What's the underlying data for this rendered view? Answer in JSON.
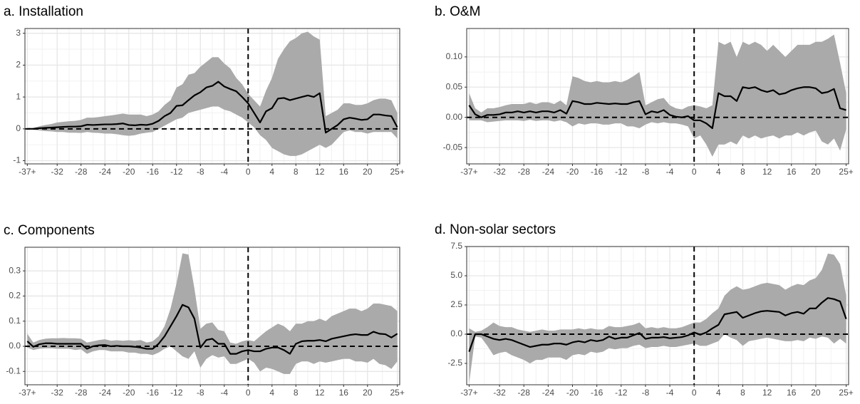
{
  "chart_data": [
    {
      "type": "line",
      "title": "a. Installation",
      "x": [
        -37,
        -36,
        -35,
        -34,
        -33,
        -32,
        -31,
        -30,
        -29,
        -28,
        -27,
        -26,
        -25,
        -24,
        -23,
        -22,
        -21,
        -20,
        -19,
        -18,
        -17,
        -16,
        -15,
        -14,
        -13,
        -12,
        -11,
        -10,
        -9,
        -8,
        -7,
        -6,
        -5,
        -4,
        -3,
        -2,
        -1,
        0,
        1,
        2,
        3,
        4,
        5,
        6,
        7,
        8,
        9,
        10,
        11,
        12,
        13,
        14,
        15,
        16,
        17,
        18,
        19,
        20,
        21,
        22,
        23,
        24,
        25
      ],
      "values": [
        0,
        0,
        0.02,
        0.03,
        0.04,
        0.05,
        0.06,
        0.07,
        0.07,
        0.08,
        0.13,
        0.12,
        0.13,
        0.14,
        0.14,
        0.15,
        0.17,
        0.12,
        0.11,
        0.13,
        0.12,
        0.16,
        0.25,
        0.4,
        0.5,
        0.72,
        0.74,
        0.9,
        1.05,
        1.15,
        1.3,
        1.35,
        1.48,
        1.33,
        1.25,
        1.18,
        1.0,
        0.8,
        0.5,
        0.2,
        0.55,
        0.65,
        0.95,
        0.97,
        0.9,
        0.95,
        1.0,
        1.05,
        1.0,
        1.12,
        -0.12,
        0,
        0.12,
        0.3,
        0.35,
        0.32,
        0.28,
        0.3,
        0.45,
        0.45,
        0.42,
        0.4,
        0.05
      ],
      "lower": [
        0,
        -0.03,
        -0.05,
        -0.07,
        -0.08,
        -0.1,
        -0.1,
        -0.12,
        -0.12,
        -0.13,
        -0.1,
        -0.12,
        -0.13,
        -0.15,
        -0.15,
        -0.17,
        -0.2,
        -0.22,
        -0.2,
        -0.15,
        -0.12,
        -0.1,
        0,
        0.1,
        0.2,
        0.3,
        0.35,
        0.5,
        0.55,
        0.6,
        0.65,
        0.7,
        0.7,
        0.6,
        0.55,
        0.45,
        0.35,
        0.2,
        0.05,
        -0.2,
        -0.35,
        -0.6,
        -0.7,
        -0.8,
        -0.85,
        -0.85,
        -0.8,
        -0.7,
        -0.6,
        -0.5,
        -0.6,
        -0.5,
        -0.3,
        -0.1,
        -0.05,
        -0.1,
        -0.1,
        -0.15,
        -0.1,
        -0.1,
        -0.1,
        -0.1,
        -0.3
      ],
      "upper": [
        0,
        0.03,
        0.08,
        0.12,
        0.15,
        0.2,
        0.22,
        0.24,
        0.25,
        0.28,
        0.35,
        0.35,
        0.37,
        0.4,
        0.42,
        0.45,
        0.48,
        0.45,
        0.45,
        0.45,
        0.4,
        0.45,
        0.55,
        0.75,
        0.9,
        1.3,
        1.4,
        1.7,
        1.75,
        1.95,
        2.1,
        2.25,
        2.25,
        2.05,
        1.9,
        1.6,
        1.4,
        1.1,
        0.9,
        0.7,
        1.2,
        1.6,
        2.2,
        2.5,
        2.75,
        2.85,
        3.0,
        3.05,
        2.9,
        2.8,
        0.4,
        0.5,
        0.6,
        0.8,
        0.8,
        0.75,
        0.75,
        0.8,
        0.9,
        0.95,
        0.95,
        0.9,
        0.5
      ],
      "color": "#000000",
      "band_color": "#aaaaaa",
      "hline": 0,
      "vline": 0,
      "grid": true,
      "xlim": [
        -37.4,
        25.4
      ],
      "ylim": [
        -1.1,
        3.15
      ],
      "xticks": [
        {
          "value": -37,
          "label": "-37+"
        },
        -32,
        -28,
        -24,
        -20,
        -16,
        -12,
        -8,
        -4,
        0,
        4,
        8,
        12,
        16,
        20,
        {
          "value": 25,
          "label": "25+"
        }
      ],
      "yticks": [
        -1,
        0,
        1,
        2,
        3
      ]
    },
    {
      "type": "line",
      "title": "b. O&M",
      "x": [
        -37,
        -36,
        -35,
        -34,
        -33,
        -32,
        -31,
        -30,
        -29,
        -28,
        -27,
        -26,
        -25,
        -24,
        -23,
        -22,
        -21,
        -20,
        -19,
        -18,
        -17,
        -16,
        -15,
        -14,
        -13,
        -12,
        -11,
        -10,
        -9,
        -8,
        -7,
        -6,
        -5,
        -4,
        -3,
        -2,
        -1,
        0,
        1,
        2,
        3,
        4,
        5,
        6,
        7,
        8,
        9,
        10,
        11,
        12,
        13,
        14,
        15,
        16,
        17,
        18,
        19,
        20,
        21,
        22,
        23,
        24,
        25
      ],
      "values": [
        0.02,
        0.005,
        0,
        0.004,
        0.004,
        0.005,
        0.008,
        0.008,
        0.01,
        0.008,
        0.01,
        0.008,
        0.01,
        0.01,
        0.008,
        0.012,
        0.006,
        0.027,
        0.025,
        0.022,
        0.022,
        0.024,
        0.023,
        0.022,
        0.023,
        0.022,
        0.022,
        0.025,
        0.027,
        0.005,
        0.01,
        0.008,
        0.012,
        0.004,
        0.001,
        0,
        0.002,
        -0.005,
        -0.005,
        -0.01,
        -0.018,
        0.04,
        0.035,
        0.035,
        0.027,
        0.05,
        0.048,
        0.05,
        0.045,
        0.042,
        0.045,
        0.038,
        0.04,
        0.045,
        0.048,
        0.05,
        0.05,
        0.048,
        0.04,
        0.042,
        0.047,
        0.015,
        0.012
      ],
      "lower": [
        -0.005,
        -0.005,
        -0.005,
        -0.008,
        -0.007,
        -0.006,
        -0.005,
        -0.005,
        -0.005,
        -0.006,
        -0.004,
        -0.006,
        -0.005,
        -0.005,
        -0.007,
        -0.005,
        -0.008,
        -0.015,
        -0.01,
        -0.012,
        -0.01,
        -0.01,
        -0.012,
        -0.012,
        -0.01,
        -0.01,
        -0.015,
        -0.015,
        -0.018,
        -0.012,
        -0.008,
        -0.01,
        -0.008,
        -0.01,
        -0.01,
        -0.012,
        -0.015,
        -0.035,
        -0.03,
        -0.045,
        -0.065,
        -0.045,
        -0.045,
        -0.04,
        -0.045,
        -0.03,
        -0.035,
        -0.03,
        -0.035,
        -0.032,
        -0.03,
        -0.035,
        -0.03,
        -0.03,
        -0.025,
        -0.03,
        -0.025,
        -0.022,
        -0.04,
        -0.045,
        -0.035,
        -0.055,
        -0.02
      ],
      "upper": [
        0.04,
        0.015,
        0.008,
        0.015,
        0.015,
        0.017,
        0.02,
        0.022,
        0.022,
        0.022,
        0.025,
        0.022,
        0.025,
        0.025,
        0.022,
        0.028,
        0.02,
        0.068,
        0.065,
        0.06,
        0.058,
        0.06,
        0.058,
        0.058,
        0.06,
        0.058,
        0.062,
        0.068,
        0.075,
        0.02,
        0.025,
        0.03,
        0.032,
        0.02,
        0.015,
        0.013,
        0.018,
        0.02,
        0.018,
        0.015,
        0.02,
        0.125,
        0.12,
        0.125,
        0.1,
        0.125,
        0.12,
        0.125,
        0.12,
        0.11,
        0.12,
        0.11,
        0.1,
        0.11,
        0.12,
        0.12,
        0.12,
        0.125,
        0.125,
        0.13,
        0.137,
        0.09,
        0.04
      ],
      "color": "#000000",
      "band_color": "#aaaaaa",
      "hline": 0,
      "vline": 0,
      "grid": true,
      "xlim": [
        -37.4,
        25.4
      ],
      "ylim": [
        -0.077,
        0.147
      ],
      "xticks": [
        {
          "value": -37,
          "label": "-37+"
        },
        -32,
        -28,
        -24,
        -20,
        -16,
        -12,
        -8,
        -4,
        0,
        4,
        8,
        12,
        16,
        20,
        {
          "value": 25,
          "label": "25+"
        }
      ],
      "yticks": [
        -0.05,
        {
          "value": 0,
          "label": "0.00"
        },
        0.05,
        {
          "value": 0.1,
          "label": "0.10"
        }
      ]
    },
    {
      "type": "line",
      "title": "c. Components",
      "x": [
        -37,
        -36,
        -35,
        -34,
        -33,
        -32,
        -31,
        -30,
        -29,
        -28,
        -27,
        -26,
        -25,
        -24,
        -23,
        -22,
        -21,
        -20,
        -19,
        -18,
        -17,
        -16,
        -15,
        -14,
        -13,
        -12,
        -11,
        -10,
        -9,
        -8,
        -7,
        -6,
        -5,
        -4,
        -3,
        -2,
        -1,
        0,
        1,
        2,
        3,
        4,
        5,
        6,
        7,
        8,
        9,
        10,
        11,
        12,
        13,
        14,
        15,
        16,
        17,
        18,
        19,
        20,
        21,
        22,
        23,
        24,
        25
      ],
      "values": [
        0.02,
        -0.002,
        0.008,
        0.012,
        0.012,
        0.01,
        0.01,
        0.01,
        0.01,
        0.01,
        -0.01,
        0,
        0.004,
        0.005,
        0,
        0.002,
        0,
        0,
        -0.002,
        -0.005,
        -0.01,
        -0.01,
        0.01,
        0.04,
        0.08,
        0.12,
        0.165,
        0.155,
        0.11,
        -0.005,
        0.025,
        0.03,
        0.01,
        0.01,
        -0.03,
        -0.03,
        -0.02,
        -0.015,
        -0.02,
        -0.02,
        -0.01,
        -0.005,
        -0.005,
        -0.015,
        -0.03,
        0.01,
        0.02,
        0.022,
        0.022,
        0.025,
        0.02,
        0.03,
        0.035,
        0.04,
        0.045,
        0.048,
        0.045,
        0.045,
        0.058,
        0.05,
        0.048,
        0.035,
        0.05
      ],
      "lower": [
        -0.005,
        -0.015,
        -0.01,
        -0.008,
        -0.008,
        -0.01,
        -0.01,
        -0.01,
        -0.015,
        -0.012,
        -0.03,
        -0.02,
        -0.015,
        -0.015,
        -0.02,
        -0.02,
        -0.02,
        -0.025,
        -0.025,
        -0.03,
        -0.03,
        -0.035,
        -0.025,
        -0.01,
        0,
        -0.02,
        -0.04,
        -0.05,
        -0.02,
        -0.085,
        -0.05,
        -0.035,
        -0.045,
        -0.04,
        -0.07,
        -0.07,
        -0.06,
        -0.05,
        -0.065,
        -0.1,
        -0.085,
        -0.09,
        -0.1,
        -0.11,
        -0.11,
        -0.07,
        -0.06,
        -0.06,
        -0.07,
        -0.06,
        -0.065,
        -0.06,
        -0.055,
        -0.05,
        -0.05,
        -0.06,
        -0.06,
        -0.065,
        -0.05,
        -0.07,
        -0.075,
        -0.09,
        -0.06
      ],
      "upper": [
        0.05,
        0.015,
        0.025,
        0.03,
        0.032,
        0.032,
        0.033,
        0.032,
        0.032,
        0.03,
        0.015,
        0.02,
        0.025,
        0.028,
        0.022,
        0.024,
        0.022,
        0.024,
        0.022,
        0.025,
        0.015,
        0.02,
        0.04,
        0.08,
        0.15,
        0.25,
        0.37,
        0.365,
        0.23,
        0.07,
        0.09,
        0.095,
        0.065,
        0.06,
        0.015,
        0.01,
        0.02,
        0.025,
        0.02,
        0.04,
        0.06,
        0.075,
        0.09,
        0.08,
        0.06,
        0.09,
        0.09,
        0.1,
        0.1,
        0.11,
        0.1,
        0.12,
        0.13,
        0.14,
        0.15,
        0.15,
        0.14,
        0.15,
        0.17,
        0.17,
        0.165,
        0.16,
        0.14
      ],
      "color": "#000000",
      "band_color": "#aaaaaa",
      "hline": 0,
      "vline": 0,
      "grid": true,
      "xlim": [
        -37.4,
        25.4
      ],
      "ylim": [
        -0.153,
        0.394
      ],
      "xticks": [
        {
          "value": -37,
          "label": "-37+"
        },
        -32,
        -28,
        -24,
        -20,
        -16,
        -12,
        -8,
        -4,
        0,
        4,
        8,
        12,
        16,
        20,
        {
          "value": 25,
          "label": "25+"
        }
      ],
      "yticks": [
        -0.1,
        {
          "value": 0,
          "label": "0.0"
        },
        0.1,
        0.2,
        0.3
      ]
    },
    {
      "type": "line",
      "title": "d. Non-solar sectors",
      "x": [
        -37,
        -36,
        -35,
        -34,
        -33,
        -32,
        -31,
        -30,
        -29,
        -28,
        -27,
        -26,
        -25,
        -24,
        -23,
        -22,
        -21,
        -20,
        -19,
        -18,
        -17,
        -16,
        -15,
        -14,
        -13,
        -12,
        -11,
        -10,
        -9,
        -8,
        -7,
        -6,
        -5,
        -4,
        -3,
        -2,
        -1,
        0,
        1,
        2,
        3,
        4,
        5,
        6,
        7,
        8,
        9,
        10,
        11,
        12,
        13,
        14,
        15,
        16,
        17,
        18,
        19,
        20,
        21,
        22,
        23,
        24,
        25
      ],
      "values": [
        -1.5,
        0,
        0,
        -0.2,
        -0.4,
        -0.5,
        -0.4,
        -0.5,
        -0.7,
        -0.9,
        -1.1,
        -1.0,
        -0.9,
        -0.9,
        -0.8,
        -0.8,
        -0.9,
        -0.7,
        -0.6,
        -0.7,
        -0.5,
        -0.6,
        -0.5,
        -0.2,
        -0.4,
        -0.3,
        -0.3,
        -0.1,
        0.1,
        -0.4,
        -0.3,
        -0.3,
        -0.25,
        -0.35,
        -0.3,
        -0.25,
        -0.1,
        0.15,
        -0.05,
        0.15,
        0.5,
        0.8,
        1.7,
        1.8,
        1.9,
        1.4,
        1.6,
        1.8,
        1.95,
        2.0,
        1.95,
        1.9,
        1.6,
        1.8,
        1.9,
        1.75,
        2.2,
        2.2,
        2.7,
        3.1,
        3.0,
        2.8,
        1.3
      ],
      "lower": [
        -4.2,
        -0.2,
        -0.3,
        -1.0,
        -1.8,
        -1.6,
        -1.5,
        -1.8,
        -2.0,
        -2.2,
        -2.5,
        -2.2,
        -2.2,
        -2.0,
        -2.0,
        -2.0,
        -2.2,
        -1.8,
        -1.7,
        -1.8,
        -1.5,
        -1.6,
        -1.5,
        -1.2,
        -1.3,
        -1.2,
        -1.2,
        -1.0,
        -0.9,
        -1.2,
        -1.1,
        -1.1,
        -1.0,
        -1.1,
        -1.1,
        -1.0,
        -0.9,
        -0.8,
        -1.0,
        -1.0,
        -0.8,
        -0.6,
        0,
        -0.3,
        -0.5,
        -1.0,
        -0.6,
        -0.5,
        -0.4,
        -0.3,
        -0.4,
        -0.5,
        -0.6,
        -0.6,
        -0.5,
        -0.6,
        -0.3,
        -0.4,
        -0.2,
        -0.3,
        -0.8,
        -0.4,
        -0.8
      ],
      "upper": [
        0.5,
        0.2,
        0.3,
        0.6,
        1.0,
        0.7,
        0.6,
        0.6,
        0.4,
        0.3,
        0.2,
        0.3,
        0.4,
        0.3,
        0.3,
        0.4,
        0.4,
        0.4,
        0.5,
        0.4,
        0.5,
        0.4,
        0.4,
        0.7,
        0.6,
        0.6,
        0.7,
        0.8,
        1.0,
        0.5,
        0.6,
        0.5,
        0.6,
        0.5,
        0.5,
        0.6,
        0.8,
        1.0,
        1.0,
        1.3,
        1.8,
        2.2,
        3.3,
        3.8,
        4.1,
        3.8,
        3.9,
        4.1,
        4.3,
        4.4,
        4.3,
        4.2,
        3.8,
        4.1,
        4.3,
        4.2,
        4.6,
        4.8,
        5.5,
        6.9,
        6.8,
        6.0,
        3.3
      ],
      "color": "#000000",
      "band_color": "#aaaaaa",
      "hline": 0,
      "vline": 0,
      "grid": true,
      "xlim": [
        -37.4,
        25.4
      ],
      "ylim": [
        -4.33,
        7.5
      ],
      "xticks": [
        {
          "value": -37,
          "label": "-37+"
        },
        -32,
        -28,
        -24,
        -20,
        -16,
        -12,
        -8,
        -4,
        0,
        4,
        8,
        12,
        16,
        20,
        {
          "value": 25,
          "label": "25+"
        }
      ],
      "yticks": [
        -2.5,
        {
          "value": 0,
          "label": "0.0"
        },
        2.5,
        {
          "value": 5,
          "label": "5.0"
        },
        7.5
      ]
    }
  ]
}
